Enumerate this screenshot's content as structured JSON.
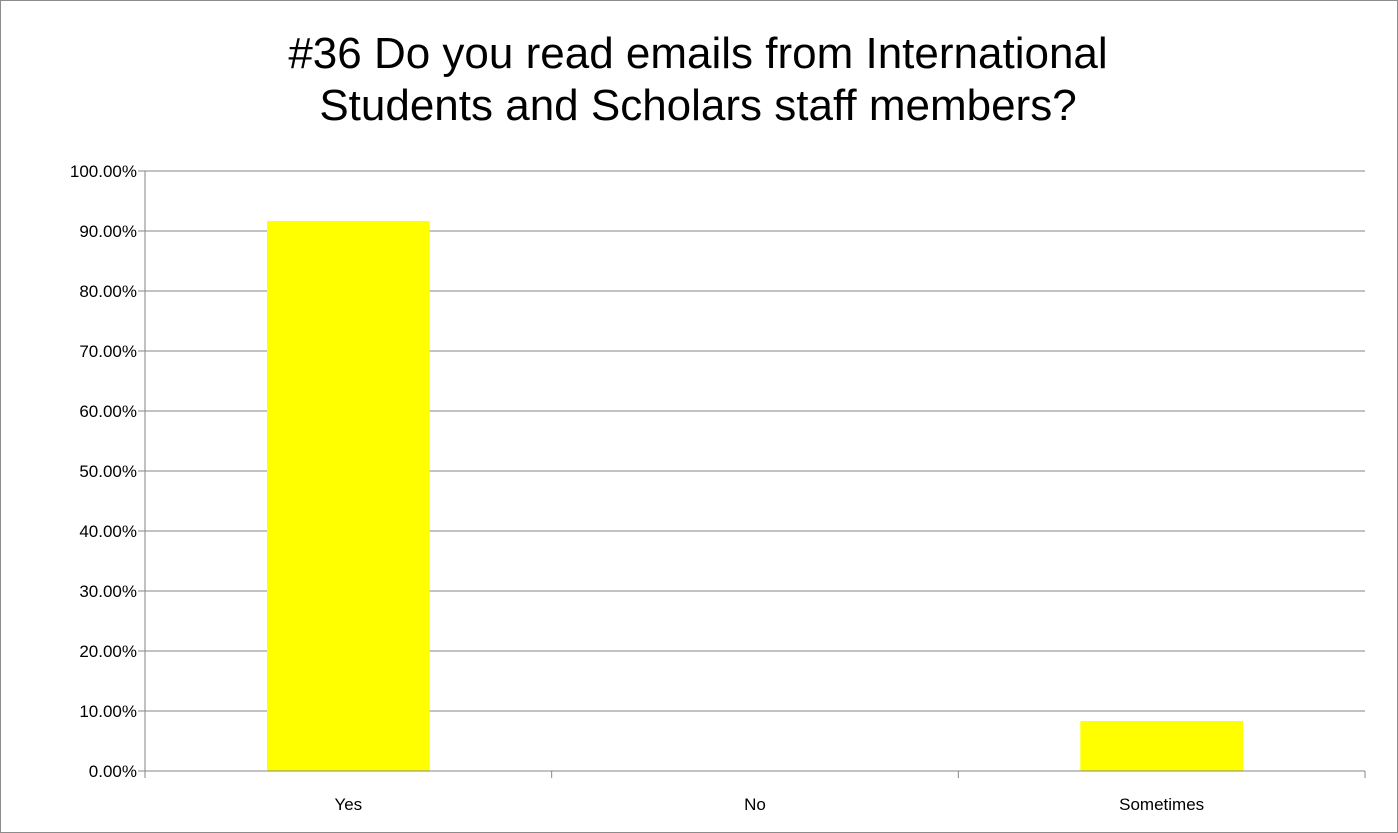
{
  "chart_data": {
    "type": "bar",
    "title_lines": [
      "#36 Do you read emails from International",
      "Students and Scholars staff members?"
    ],
    "categories": [
      "Yes",
      "No",
      "Sometimes"
    ],
    "values": [
      0.9167,
      0.0,
      0.0833
    ],
    "ylim": [
      0,
      1.0
    ],
    "y_ticks": [
      "0.00%",
      "10.00%",
      "20.00%",
      "30.00%",
      "40.00%",
      "50.00%",
      "60.00%",
      "70.00%",
      "80.00%",
      "90.00%",
      "100.00%"
    ],
    "bar_color": "#FFFF00",
    "gridline_color": "#868686",
    "grid": true,
    "legend": "none"
  }
}
